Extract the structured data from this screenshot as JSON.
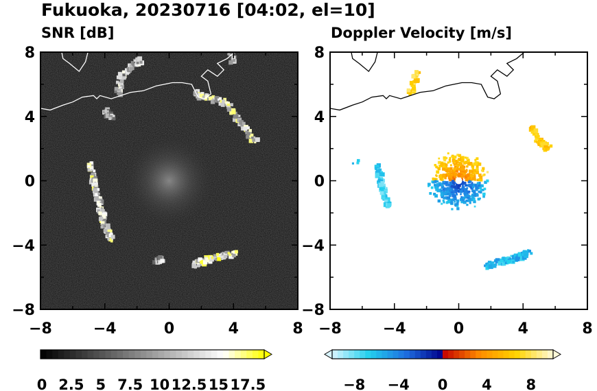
{
  "title": "Fukuoka, 20230716 [04:02, el=10]",
  "chart_data": [
    {
      "type": "heatmap",
      "title": "SNR [dB]",
      "xlim": [
        -8,
        8
      ],
      "ylim": [
        -8,
        8
      ],
      "xticks": [
        "−8",
        "−4",
        "0",
        "4",
        "8"
      ],
      "yticks": [
        "8",
        "4",
        "0",
        "−4",
        "−8"
      ],
      "colorbar": {
        "range": [
          0,
          19
        ],
        "extend": "max",
        "tick_labels": [
          "0",
          "2.5",
          "5",
          "7.5",
          "10",
          "12.5",
          "15",
          "17.5"
        ],
        "colors": [
          "#000000",
          "#ffffff",
          "#ffff00"
        ]
      },
      "echo_bands": [
        {
          "name": "west-arc",
          "points": [
            [
              -4.9,
              1.0
            ],
            [
              -4.7,
              0.0
            ],
            [
              -4.4,
              -1.0
            ],
            [
              -4.2,
              -2.0
            ],
            [
              -4.0,
              -2.8
            ],
            [
              -3.6,
              -3.6
            ]
          ],
          "value": 13
        },
        {
          "name": "south-band",
          "points": [
            [
              1.6,
              -5.2
            ],
            [
              2.4,
              -4.9
            ],
            [
              3.2,
              -4.7
            ],
            [
              4.2,
              -4.5
            ]
          ],
          "value": 14
        },
        {
          "name": "south-small",
          "points": [
            [
              -0.8,
              -5.0
            ],
            [
              -0.4,
              -4.9
            ]
          ],
          "value": 10
        },
        {
          "name": "northeast-arc",
          "points": [
            [
              1.6,
              5.4
            ],
            [
              2.4,
              5.2
            ],
            [
              3.6,
              4.8
            ],
            [
              4.6,
              3.4
            ],
            [
              5.4,
              2.4
            ]
          ],
          "value": 13
        },
        {
          "name": "north-cells",
          "points": [
            [
              -3.2,
              5.4
            ],
            [
              -3.0,
              6.5
            ],
            [
              -2.2,
              7.2
            ],
            [
              -1.8,
              7.5
            ]
          ],
          "value": 11
        },
        {
          "name": "northwest-cells",
          "points": [
            [
              -4.0,
              4.3
            ],
            [
              -3.6,
              4.0
            ]
          ],
          "value": 9
        },
        {
          "name": "far-northeast",
          "points": [
            [
              3.8,
              8.0
            ],
            [
              4.0,
              7.5
            ]
          ],
          "value": 9
        }
      ]
    },
    {
      "type": "heatmap",
      "title": "Doppler Velocity [m/s]",
      "xlim": [
        -8,
        8
      ],
      "ylim": [
        -8,
        8
      ],
      "xticks": [
        "−8",
        "−4",
        "0",
        "4",
        "8"
      ],
      "yticks": [
        "8",
        "4",
        "0",
        "−4",
        "−8"
      ],
      "colorbar": {
        "range": [
          -10,
          10
        ],
        "extend": "both",
        "tick_labels": [
          "−8",
          "−4",
          "0",
          "4",
          "8"
        ],
        "colors": [
          "#d9f5ff",
          "#22d0ee",
          "#1e6fe0",
          "#00008a",
          "#c40000",
          "#ff8c00",
          "#ffd400",
          "#fffad8"
        ]
      },
      "echo_bands": [
        {
          "name": "west-arc",
          "points": [
            [
              -5.0,
              0.8
            ],
            [
              -4.8,
              -0.2
            ],
            [
              -4.6,
              -1.0
            ],
            [
              -4.4,
              -1.6
            ]
          ],
          "value": -7
        },
        {
          "name": "south-band",
          "points": [
            [
              1.8,
              -5.3
            ],
            [
              2.8,
              -5.0
            ],
            [
              3.6,
              -4.8
            ],
            [
              4.4,
              -4.5
            ]
          ],
          "value": -6
        },
        {
          "name": "northeast-arc",
          "points": [
            [
              4.6,
              3.2
            ],
            [
              5.0,
              2.4
            ],
            [
              5.6,
              2.0
            ]
          ],
          "value": 6
        },
        {
          "name": "north-cells",
          "points": [
            [
              -3.0,
              5.4
            ],
            [
              -2.6,
              6.6
            ]
          ],
          "value": 7
        },
        {
          "name": "west-small",
          "points": [
            [
              -6.4,
              1.1
            ]
          ],
          "value": -7
        }
      ],
      "near_field": {
        "north_value": 6,
        "south_value": -5,
        "radius": 2.0
      }
    }
  ]
}
